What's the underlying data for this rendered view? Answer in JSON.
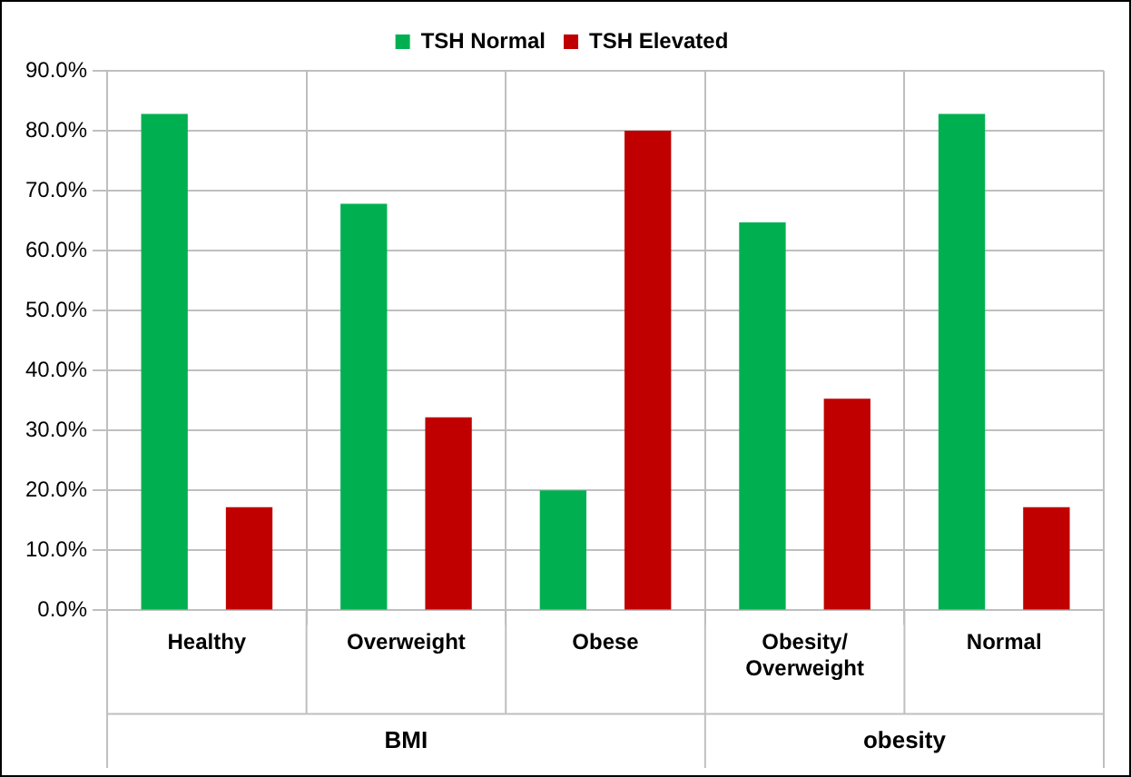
{
  "chart_data": {
    "type": "bar",
    "categories": [
      "Healthy",
      "Overweight",
      "Obese",
      "Obesity/ Overweight",
      "Normal"
    ],
    "series": [
      {
        "name": "TSH Normal",
        "color": "#00b050",
        "values": [
          82.8,
          67.8,
          20,
          64.7,
          82.8
        ]
      },
      {
        "name": "TSH Elevated",
        "color": "#c00000",
        "values": [
          17.2,
          32.2,
          80,
          35.3,
          17.2
        ]
      }
    ],
    "ylim": [
      0,
      90
    ],
    "yticks": [
      {
        "value": 0,
        "label": "0.0%"
      },
      {
        "value": 10,
        "label": "10.0%"
      },
      {
        "value": 20,
        "label": "20.0%"
      },
      {
        "value": 30,
        "label": "30.0%"
      },
      {
        "value": 40,
        "label": "40.0%"
      },
      {
        "value": 50,
        "label": "50.0%"
      },
      {
        "value": 60,
        "label": "60.0%"
      },
      {
        "value": 70,
        "label": "70.0%"
      },
      {
        "value": 80,
        "label": "80.0%"
      },
      {
        "value": 90,
        "label": "90.0%"
      }
    ],
    "annotations": [
      "BMI",
      "obesity"
    ],
    "grid": true,
    "legend": "top"
  }
}
